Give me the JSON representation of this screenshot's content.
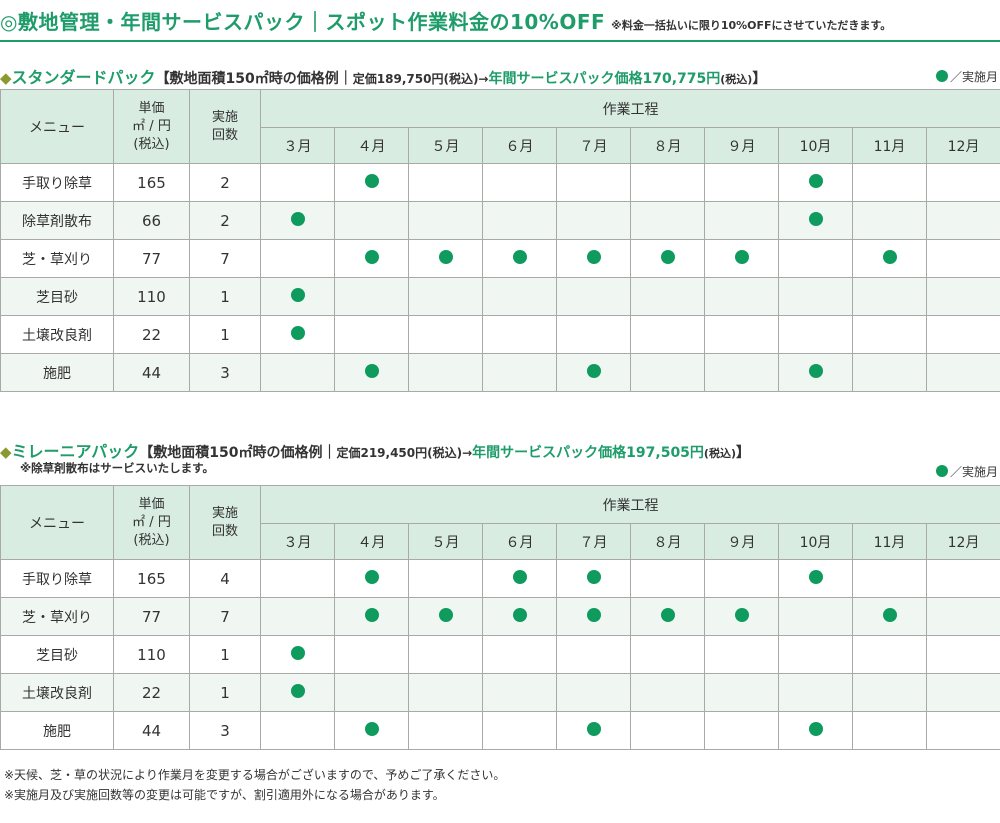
{
  "header": {
    "title": "◎敷地管理・年間サービスパック｜スポット作業料金の10%OFF",
    "note": "※料金一括払いに限り10%OFFにさせていただきます。"
  },
  "columns": {
    "menu": "メニュー",
    "unit_line1": "単価",
    "unit_line2": "㎡ / 円",
    "unit_line3": "(税込)",
    "times_line1": "実施",
    "times_line2": "回数",
    "process": "作業工程",
    "months": [
      "３月",
      "４月",
      "５月",
      "６月",
      "７月",
      "８月",
      "９月",
      "10月",
      "11月",
      "12月"
    ]
  },
  "legend": "／実施月",
  "standard": {
    "diamond": "◆",
    "name": "スタンダードパック",
    "example_open": "【敷地面積150㎡時の価格例｜",
    "regular": "定価189,750円(税込)→",
    "pack_price": "年間サービスパック価格170,775円",
    "tax": "(税込)",
    "example_close": "】",
    "rows": [
      {
        "menu": "手取り除草",
        "price": "165",
        "times": "2",
        "months": [
          0,
          1,
          0,
          0,
          0,
          0,
          0,
          1,
          0,
          0
        ]
      },
      {
        "menu": "除草剤散布",
        "price": "66",
        "times": "2",
        "months": [
          1,
          0,
          0,
          0,
          0,
          0,
          0,
          1,
          0,
          0
        ]
      },
      {
        "menu": "芝・草刈り",
        "price": "77",
        "times": "7",
        "months": [
          0,
          1,
          1,
          1,
          1,
          1,
          1,
          0,
          1,
          0
        ]
      },
      {
        "menu": "芝目砂",
        "price": "110",
        "times": "1",
        "months": [
          1,
          0,
          0,
          0,
          0,
          0,
          0,
          0,
          0,
          0
        ]
      },
      {
        "menu": "土壌改良剤",
        "price": "22",
        "times": "1",
        "months": [
          1,
          0,
          0,
          0,
          0,
          0,
          0,
          0,
          0,
          0
        ]
      },
      {
        "menu": "施肥",
        "price": "44",
        "times": "3",
        "months": [
          0,
          1,
          0,
          0,
          1,
          0,
          0,
          1,
          0,
          0
        ]
      }
    ]
  },
  "millennia": {
    "diamond": "◆",
    "name": "ミレーニアパック",
    "example_open": "【敷地面積150㎡時の価格例｜",
    "regular": "定価219,450円(税込)→",
    "pack_price": "年間サービスパック価格197,505円",
    "tax": "(税込)",
    "example_close": "】",
    "sub_note": "※除草剤散布はサービスいたします。",
    "rows": [
      {
        "menu": "手取り除草",
        "price": "165",
        "times": "4",
        "months": [
          0,
          1,
          0,
          1,
          1,
          0,
          0,
          1,
          0,
          0
        ]
      },
      {
        "menu": "芝・草刈り",
        "price": "77",
        "times": "7",
        "months": [
          0,
          1,
          1,
          1,
          1,
          1,
          1,
          0,
          1,
          0
        ]
      },
      {
        "menu": "芝目砂",
        "price": "110",
        "times": "1",
        "months": [
          1,
          0,
          0,
          0,
          0,
          0,
          0,
          0,
          0,
          0
        ]
      },
      {
        "menu": "土壌改良剤",
        "price": "22",
        "times": "1",
        "months": [
          1,
          0,
          0,
          0,
          0,
          0,
          0,
          0,
          0,
          0
        ]
      },
      {
        "menu": "施肥",
        "price": "44",
        "times": "3",
        "months": [
          0,
          1,
          0,
          0,
          1,
          0,
          0,
          1,
          0,
          0
        ]
      }
    ]
  },
  "footer": {
    "note1": "※天候、芝・草の状況により作業月を変更する場合がございますので、予めご了承ください。",
    "note2": "※実施月及び実施回数等の変更は可能ですが、割引適用外になる場合があります。"
  },
  "colors": {
    "accent": "#1e9c6a",
    "dot": "#0f9a5e",
    "header_bg": "#d8ece2",
    "alt_row_bg": "#f0f7f3"
  }
}
